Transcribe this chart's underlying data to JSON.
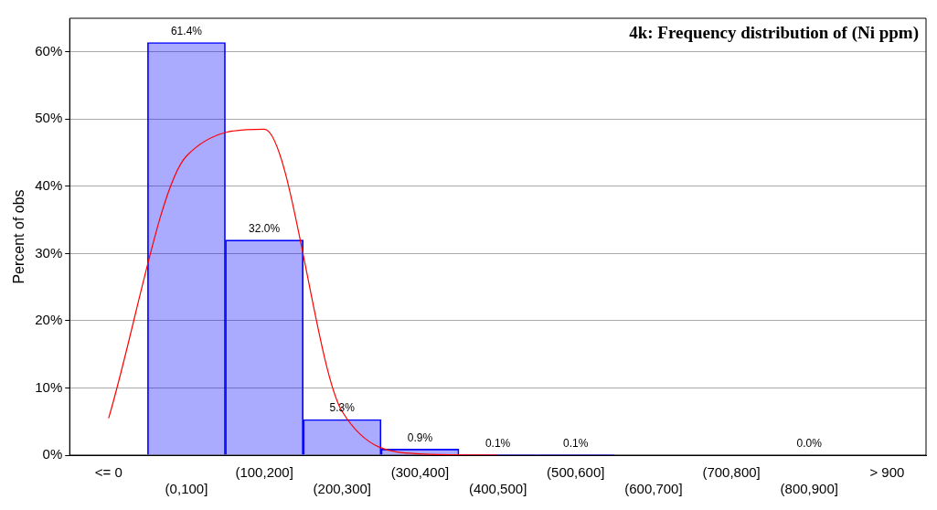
{
  "chart_data": {
    "type": "bar",
    "title": "4k: Frequency distribution of (Ni ppm)",
    "ylabel": "Percent of obs",
    "categories": [
      "<= 0",
      "(0,100]",
      "(100,200]",
      "(200,300]",
      "(300,400]",
      "(400,500]",
      "(500,600]",
      "(600,700]",
      "(700,800]",
      "(800,900]",
      "> 900"
    ],
    "ylim": [
      0,
      65
    ],
    "yticks": [
      {
        "value": 0,
        "label": "0%"
      },
      {
        "value": 10,
        "label": "10%"
      },
      {
        "value": 20,
        "label": "20%"
      },
      {
        "value": 30,
        "label": "30%"
      },
      {
        "value": 40,
        "label": "40%"
      },
      {
        "value": 50,
        "label": "50%"
      },
      {
        "value": 60,
        "label": "60%"
      }
    ],
    "grid": "y",
    "legend": false,
    "series": [
      {
        "color": "#0000ff",
        "values": [
          0,
          61.4,
          32.0,
          5.3,
          0.9,
          0.1,
          0.1,
          0,
          0,
          0.0,
          0
        ],
        "value_labels": [
          null,
          "61.4%",
          "32.0%",
          "5.3%",
          "0.9%",
          "0.1%",
          "0.1%",
          null,
          null,
          "0.0%",
          null
        ]
      },
      {
        "type": "line",
        "color": "#ff0000",
        "values": [
          5.5,
          44.5,
          48.5,
          6.5,
          0.2,
          0,
          null,
          null,
          null,
          null,
          null
        ]
      }
    ]
  }
}
